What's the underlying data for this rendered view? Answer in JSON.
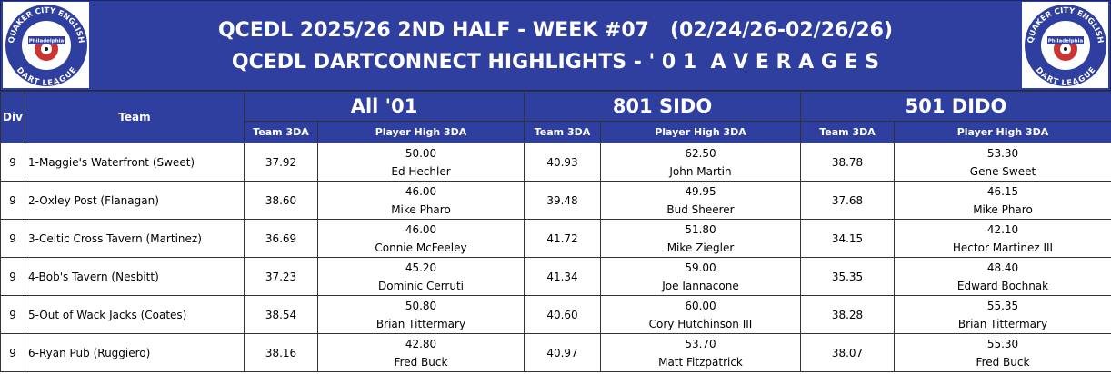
{
  "header": {
    "title_lines": [
      "QCEDL 2025/26 2ND HALF - WEEK #07   (02/24/26-02/26/26)",
      "QCEDL DARTCONNECT HIGHLIGHTS - ' 0 1  A V E R A G E S"
    ],
    "logo": {
      "top": "QUAKER CITY ENGLISH",
      "center": "Philadelphia",
      "bottom": "DART LEAGUE"
    }
  },
  "table": {
    "columns": {
      "div": "Div",
      "team": "Team",
      "groups": [
        "All '01",
        "801 SIDO",
        "501 DIDO"
      ],
      "sub": [
        "Team 3DA",
        "Player High 3DA",
        "Team 3DA",
        "Player High 3DA",
        "Team 3DA",
        "Player High 3DA"
      ]
    },
    "rows": [
      [
        "9",
        "1-Maggie's Waterfront (Sweet)",
        "37.92",
        "50.00",
        "Ed Hechler",
        "40.93",
        "62.50",
        "John Martin",
        "38.78",
        "53.30",
        "Gene Sweet"
      ],
      [
        "9",
        "2-Oxley Post (Flanagan)",
        "38.60",
        "46.00",
        "Mike Pharo",
        "39.48",
        "49.95",
        "Bud Sheerer",
        "37.68",
        "46.15",
        "Mike Pharo"
      ],
      [
        "9",
        "3-Celtic Cross Tavern (Martinez)",
        "36.69",
        "46.00",
        "Connie McFeeley",
        "41.72",
        "51.80",
        "Mike Ziegler",
        "34.15",
        "42.10",
        "Hector Martinez III"
      ],
      [
        "9",
        "4-Bob's Tavern (Nesbitt)",
        "37.23",
        "45.20",
        "Dominic Cerruti",
        "41.34",
        "59.00",
        "Joe Iannacone",
        "35.35",
        "48.40",
        "Edward Bochnak"
      ],
      [
        "9",
        "5-Out of Wack Jacks (Coates)",
        "38.54",
        "50.80",
        "Brian Tittermary",
        "40.60",
        "60.00",
        "Cory Hutchinson III",
        "38.28",
        "55.35",
        "Brian Tittermary"
      ],
      [
        "9",
        "6-Ryan Pub (Ruggiero)",
        "38.16",
        "42.80",
        "Fred Buck",
        "40.97",
        "53.70",
        "Matt Fitzpatrick",
        "38.07",
        "55.30",
        "Fred Buck"
      ]
    ]
  }
}
